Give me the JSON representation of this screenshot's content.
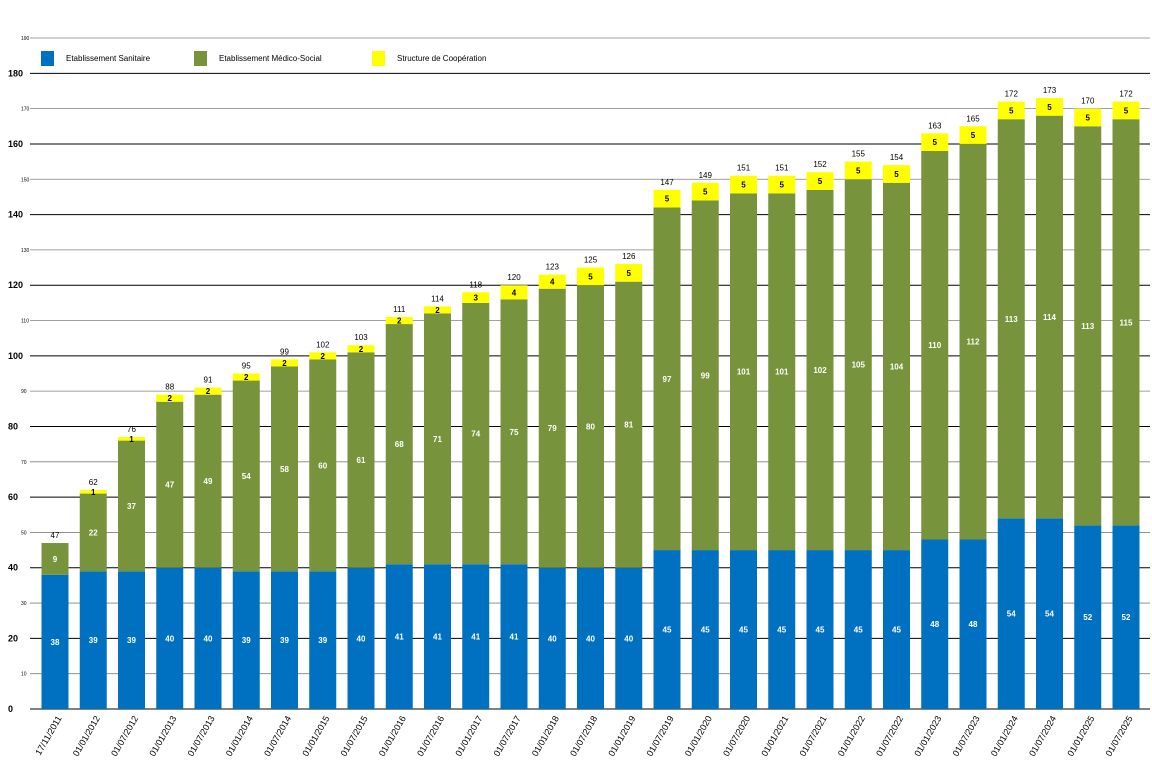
{
  "colors": {
    "sanitaire": "#0070C0",
    "medico_social": "#77933C",
    "cooperation": "#FFFF00",
    "grid_major": "#000000",
    "grid_minor": "#808080"
  },
  "chart_data": {
    "type": "bar",
    "stacked": true,
    "title": "",
    "xlabel": "",
    "ylabel": "",
    "ylim": [
      0,
      190
    ],
    "major_ticks": [
      0,
      20,
      40,
      60,
      80,
      100,
      120,
      140,
      160,
      180
    ],
    "minor_ticks": [
      10,
      30,
      50,
      70,
      90,
      110,
      130,
      150,
      170,
      190
    ],
    "grid": true,
    "legend_position": "top-left",
    "categories": [
      "17/11/2011",
      "01/01/2012",
      "01/07/2012",
      "01/01/2013",
      "01/07/2013",
      "01/01/2014",
      "01/07/2014",
      "01/01/2015",
      "01/07/2015",
      "01/01/2016",
      "01/07/2016",
      "01/01/2017",
      "01/07/2017",
      "01/01/2018",
      "01/07/2018",
      "01/01/2019",
      "01/07/2019",
      "01/01/2020",
      "01/07/2020",
      "01/01/2021",
      "01/07/2021",
      "01/01/2022",
      "01/07/2022",
      "01/01/2023",
      "01/07/2023",
      "01/01/2024",
      "01/07/2024",
      "01/01/2025",
      "01/07/2025"
    ],
    "series": [
      {
        "name": "Etablissement Sanitaire",
        "color": "#0070C0",
        "values": [
          38,
          39,
          39,
          40,
          40,
          39,
          39,
          39,
          40,
          41,
          41,
          41,
          41,
          40,
          40,
          40,
          45,
          45,
          45,
          45,
          45,
          45,
          45,
          48,
          48,
          54,
          54,
          52,
          52
        ]
      },
      {
        "name": "Etablissement Médico-Social",
        "color": "#77933C",
        "values": [
          9,
          22,
          37,
          47,
          49,
          54,
          58,
          60,
          61,
          68,
          71,
          74,
          75,
          79,
          80,
          81,
          97,
          99,
          101,
          101,
          102,
          105,
          104,
          110,
          112,
          113,
          114,
          113,
          115
        ]
      },
      {
        "name": "Structure de Coopération",
        "color": "#FFFF00",
        "values": [
          0,
          1,
          1,
          2,
          2,
          2,
          2,
          2,
          2,
          2,
          2,
          3,
          4,
          4,
          5,
          5,
          5,
          5,
          5,
          5,
          5,
          5,
          5,
          5,
          5,
          5,
          5,
          5,
          5
        ]
      }
    ],
    "totals": [
      47,
      62,
      76,
      88,
      91,
      95,
      99,
      102,
      103,
      111,
      114,
      118,
      120,
      123,
      125,
      126,
      147,
      149,
      151,
      151,
      152,
      155,
      154,
      163,
      165,
      172,
      173,
      170,
      172
    ]
  }
}
